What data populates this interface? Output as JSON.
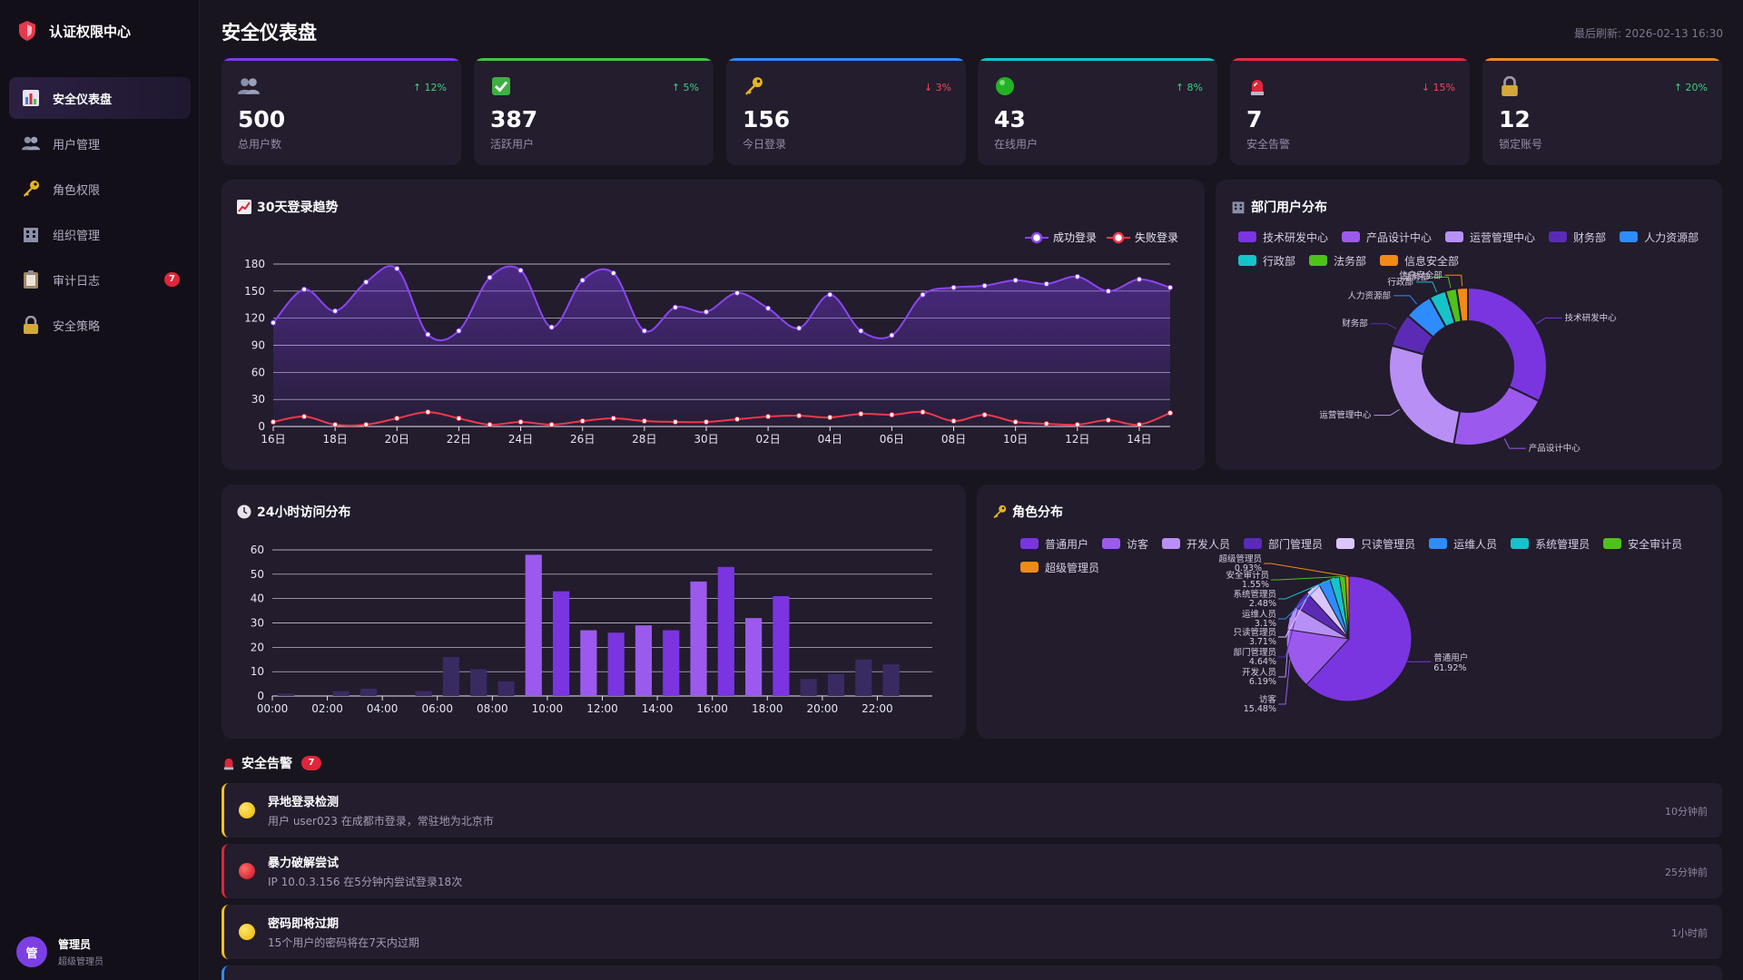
{
  "app": {
    "title": "认证权限中心"
  },
  "sidebar": {
    "items": [
      {
        "label": "安全仪表盘",
        "icon": "bar-chart-icon",
        "active": true
      },
      {
        "label": "用户管理",
        "icon": "users-icon"
      },
      {
        "label": "角色权限",
        "icon": "key-icon"
      },
      {
        "label": "组织管理",
        "icon": "building-icon"
      },
      {
        "label": "审计日志",
        "icon": "clipboard-icon",
        "badge": "7"
      },
      {
        "label": "安全策略",
        "icon": "lock-icon"
      }
    ],
    "user": {
      "avatar": "管",
      "name": "管理员",
      "role": "超级管理员"
    }
  },
  "header": {
    "title": "安全仪表盘",
    "refresh": "最后刷新: 2026-02-13 16:30"
  },
  "stats": [
    {
      "value": "500",
      "label": "总用户数",
      "trend": "↑ 12%",
      "dir": "up",
      "color": "#7c3aed",
      "icon": "users-icon"
    },
    {
      "value": "387",
      "label": "活跃用户",
      "trend": "↑ 5%",
      "dir": "up",
      "color": "#3ec93e",
      "icon": "check-icon"
    },
    {
      "value": "156",
      "label": "今日登录",
      "trend": "↓ 3%",
      "dir": "down",
      "color": "#2f8cff",
      "icon": "key-icon"
    },
    {
      "value": "43",
      "label": "在线用户",
      "trend": "↑ 8%",
      "dir": "up",
      "color": "#17c1c9",
      "icon": "online-dot-icon"
    },
    {
      "value": "7",
      "label": "安全告警",
      "trend": "↓ 15%",
      "dir": "down",
      "color": "#e82d3f",
      "icon": "alarm-icon"
    },
    {
      "value": "12",
      "label": "锁定账号",
      "trend": "↑ 20%",
      "dir": "up",
      "color": "#f28a17",
      "icon": "lock-icon"
    }
  ],
  "panels": {
    "login_trend": "30天登录趋势",
    "dept": "部门用户分布",
    "hourly": "24小时访问分布",
    "roles": "角色分布"
  },
  "chart_data": [
    {
      "type": "line",
      "title": "30天登录趋势",
      "x": [
        "16日",
        "17日",
        "18日",
        "19日",
        "20日",
        "21日",
        "22日",
        "23日",
        "24日",
        "25日",
        "26日",
        "27日",
        "28日",
        "29日",
        "30日",
        "31日",
        "02日",
        "03日",
        "04日",
        "05日",
        "06日",
        "07日",
        "08日",
        "09日",
        "10日",
        "11日",
        "12日",
        "13日",
        "14日",
        "15日"
      ],
      "x_tick_labels": [
        "16日",
        "18日",
        "20日",
        "22日",
        "24日",
        "26日",
        "28日",
        "30日",
        "02日",
        "04日",
        "06日",
        "08日",
        "10日",
        "12日",
        "14日"
      ],
      "ylim": [
        0,
        180
      ],
      "yticks": [
        0,
        30,
        60,
        90,
        120,
        150,
        180
      ],
      "grid": true,
      "legend": "top-right",
      "series": [
        {
          "name": "成功登录",
          "color": "#8b45f0",
          "values": [
            115,
            152,
            128,
            160,
            175,
            102,
            106,
            165,
            173,
            110,
            162,
            170,
            106,
            132,
            127,
            148,
            131,
            109,
            146,
            106,
            101,
            146,
            154,
            156,
            162,
            158,
            166,
            150,
            163,
            154
          ]
        },
        {
          "name": "失败登录",
          "color": "#f0384b",
          "values": [
            5,
            11,
            2,
            2,
            9,
            16,
            9,
            2,
            5,
            2,
            6,
            9,
            6,
            5,
            5,
            8,
            11,
            12,
            10,
            14,
            13,
            16,
            6,
            13,
            5,
            3,
            2,
            7,
            2,
            15
          ]
        }
      ]
    },
    {
      "type": "pie",
      "title": "部门用户分布",
      "legend": "top",
      "categories": [
        "技术研发中心",
        "产品设计中心",
        "运营管理中心",
        "财务部",
        "人力资源部",
        "行政部",
        "法务部",
        "信息安全部"
      ],
      "values": [
        28,
        18,
        23,
        6,
        5,
        3,
        2,
        2
      ],
      "colors": [
        "#7a35e0",
        "#9b5aed",
        "#b890f5",
        "#5b2bb5",
        "#2f8cff",
        "#16c3c9",
        "#4fc11a",
        "#f28a17"
      ]
    },
    {
      "type": "bar",
      "title": "24小时访问分布",
      "categories": [
        "00:00",
        "01:00",
        "02:00",
        "03:00",
        "04:00",
        "05:00",
        "06:00",
        "07:00",
        "08:00",
        "09:00",
        "10:00",
        "11:00",
        "12:00",
        "13:00",
        "14:00",
        "15:00",
        "16:00",
        "17:00",
        "18:00",
        "19:00",
        "20:00",
        "21:00",
        "22:00",
        "23:00"
      ],
      "x_tick_labels": [
        "00:00",
        "02:00",
        "04:00",
        "06:00",
        "08:00",
        "10:00",
        "12:00",
        "14:00",
        "16:00",
        "18:00",
        "20:00",
        "22:00"
      ],
      "values": [
        1,
        0,
        2,
        3,
        0,
        2,
        16,
        11,
        6,
        58,
        43,
        27,
        26,
        29,
        27,
        47,
        53,
        32,
        41,
        7,
        9,
        15,
        13,
        0
      ],
      "ylim": [
        0,
        60
      ],
      "yticks": [
        0,
        10,
        20,
        30,
        40,
        50,
        60
      ],
      "grid": true
    },
    {
      "type": "pie",
      "title": "角色分布",
      "legend": "top",
      "categories": [
        "普通用户",
        "访客",
        "开发人员",
        "部门管理员",
        "只读管理员",
        "运维人员",
        "系统管理员",
        "安全审计员",
        "超级管理员"
      ],
      "values": [
        61.92,
        15.48,
        6.19,
        4.64,
        3.71,
        3.1,
        2.48,
        1.55,
        0.93
      ],
      "labels": [
        "61.92%",
        "15.48%",
        "6.19%",
        "4.64%",
        "3.71%",
        "3.1%",
        "2.48%",
        "1.55%",
        "0.93%"
      ],
      "colors": [
        "#7a35e0",
        "#9b5aed",
        "#b890f5",
        "#5b2bb5",
        "#d9c6fb",
        "#2f8cff",
        "#16c3c9",
        "#4fc11a",
        "#f28a17"
      ]
    }
  ],
  "alerts": {
    "title": "安全告警",
    "count": "7",
    "items": [
      {
        "title": "异地登录检测",
        "desc": "用户 user023 在成都市登录，常驻地为北京市",
        "time": "10分钟前",
        "level": "warning"
      },
      {
        "title": "暴力破解尝试",
        "desc": "IP 10.0.3.156 在5分钟内尝试登录18次",
        "time": "25分钟前",
        "level": "danger"
      },
      {
        "title": "密码即将过期",
        "desc": "15个用户的密码将在7天内过期",
        "time": "1小时前",
        "level": "warning"
      }
    ]
  },
  "colors": {
    "accent": "#7c3aed",
    "bg": "#19151f",
    "panel": "#221c2d",
    "danger": "#e0263a",
    "warning": "#f5c518"
  }
}
